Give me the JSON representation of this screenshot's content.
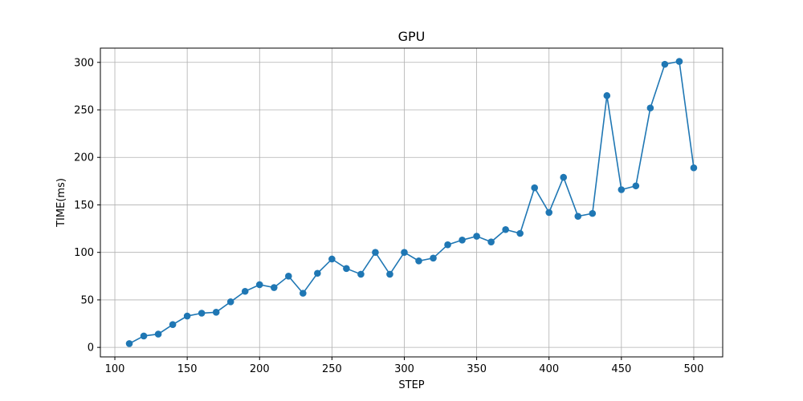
{
  "chart_data": {
    "type": "line",
    "title": "GPU",
    "xlabel": "STEP",
    "ylabel": "TIME(ms)",
    "xlim": [
      90,
      520
    ],
    "ylim": [
      -10,
      315
    ],
    "xticks": [
      100,
      150,
      200,
      250,
      300,
      350,
      400,
      450,
      500
    ],
    "yticks": [
      0,
      50,
      100,
      150,
      200,
      250,
      300
    ],
    "grid": true,
    "color": "#1f77b4",
    "series": [
      {
        "x": [
          110,
          120,
          130,
          140,
          150,
          160,
          170,
          180,
          190,
          200,
          210,
          220,
          230,
          240,
          250,
          260,
          270,
          280,
          290,
          300,
          310,
          320,
          330,
          340,
          350,
          360,
          370,
          380,
          390,
          400,
          410,
          420,
          430,
          440,
          450,
          460,
          470,
          480,
          490,
          500
        ],
        "values": [
          4,
          12,
          14,
          24,
          33,
          36,
          37,
          48,
          59,
          66,
          63,
          75,
          57,
          78,
          93,
          83,
          77,
          100,
          77,
          100,
          91,
          94,
          108,
          113,
          117,
          111,
          124,
          120,
          168,
          142,
          179,
          138,
          141,
          265,
          166,
          170,
          252,
          298,
          301,
          189
        ]
      }
    ]
  }
}
